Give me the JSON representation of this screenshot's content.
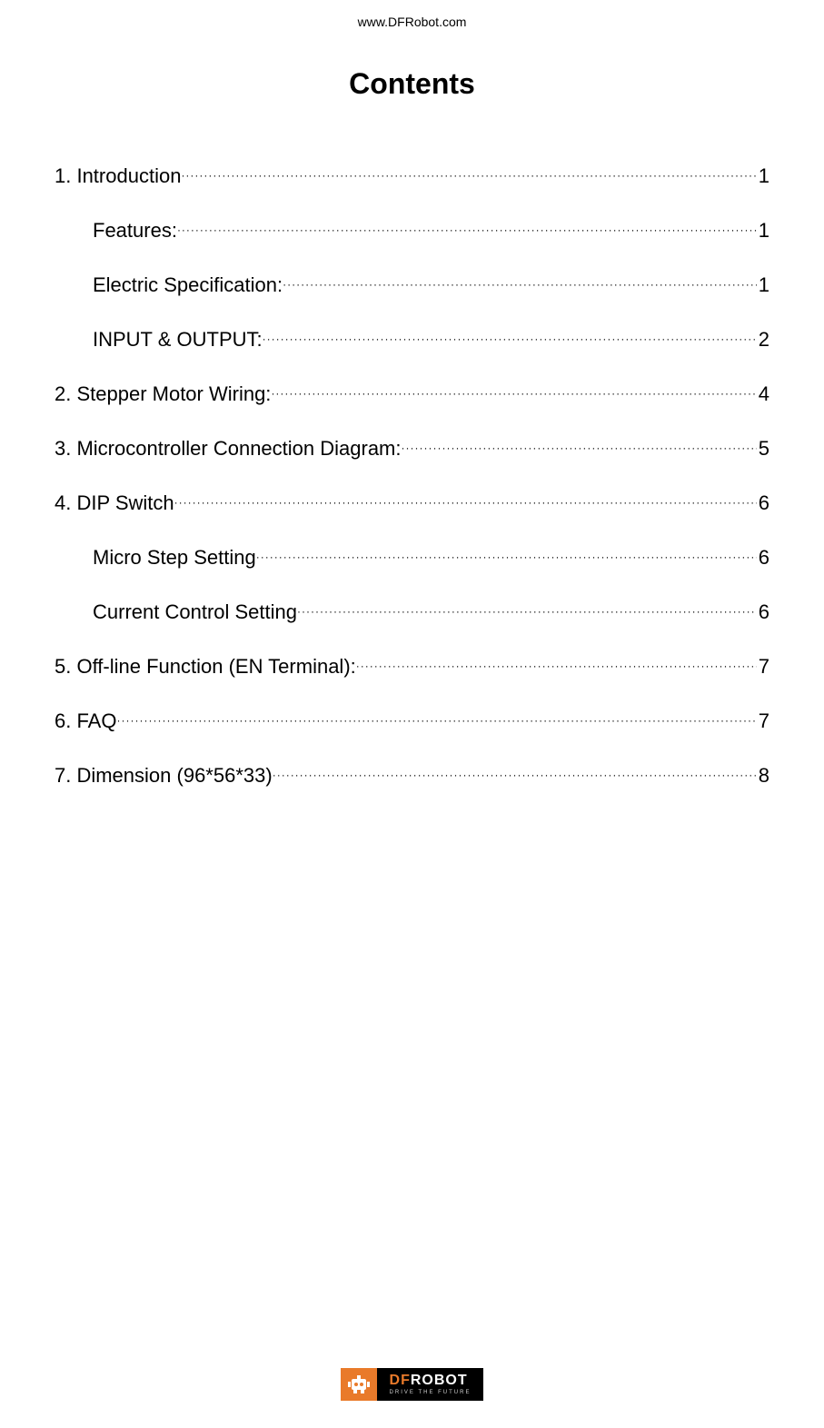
{
  "header_url": "www.DFRobot.com",
  "title": "Contents",
  "toc": [
    {
      "label": "1. Introduction",
      "page": "1",
      "indent": false
    },
    {
      "label": "Features:",
      "page": "1",
      "indent": true
    },
    {
      "label": "Electric Specification:",
      "page": "1",
      "indent": true
    },
    {
      "label": "INPUT & OUTPUT:",
      "page": "2",
      "indent": true
    },
    {
      "label": "2. Stepper Motor Wiring:",
      "page": "4",
      "indent": false
    },
    {
      "label": "3. Microcontroller Connection Diagram:",
      "page": "5",
      "indent": false
    },
    {
      "label": "4. DIP Switch",
      "page": "6",
      "indent": false
    },
    {
      "label": "Micro Step Setting",
      "page": "6",
      "indent": true
    },
    {
      "label": "Current Control Setting",
      "page": "6",
      "indent": true
    },
    {
      "label": "5. Off-line Function (EN Terminal):",
      "page": "7",
      "indent": false
    },
    {
      "label": "6. FAQ",
      "page": "7",
      "indent": false
    },
    {
      "label": "7. Dimension (96*56*33)",
      "page": "8",
      "indent": false
    }
  ],
  "logo": {
    "brand_prefix": "DF",
    "brand_suffix": "ROBOT",
    "tagline": "DRIVE THE FUTURE",
    "bg_color": "#000000",
    "accent_color": "#e97a2a",
    "text_color": "#ffffff"
  },
  "typography": {
    "title_fontsize": 32,
    "title_weight": 700,
    "toc_fontsize": 22,
    "header_fontsize": 14,
    "text_color": "#000000",
    "background_color": "#ffffff"
  }
}
